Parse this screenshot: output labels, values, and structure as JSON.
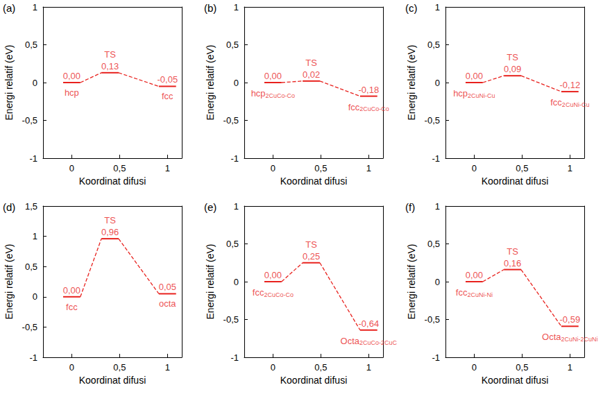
{
  "chart_data": [
    {
      "type": "line",
      "title": "(a)",
      "x_label": "Koordinat difusi",
      "y_label": "Energi relatif (eV)",
      "x": [
        0,
        0.4,
        1
      ],
      "values": [
        0,
        0.13,
        -0.05
      ],
      "value_labels": [
        "0,00",
        "0,13",
        "-0,05"
      ],
      "annotations": [
        {
          "text": "hcp"
        },
        {
          "text": "TS"
        },
        {
          "text": "fcc"
        }
      ],
      "color": "#e8211d",
      "line_style": "dashed",
      "data_labels": true,
      "grid": false,
      "xlim": [
        -0.3,
        1.15
      ],
      "xticks": [
        0,
        {
          "value": 0.5,
          "label": "0,5"
        },
        1
      ],
      "ylim": [
        -1,
        1
      ],
      "yticks": [
        -1,
        {
          "value": -0.5,
          "label": "-0,5"
        },
        0,
        {
          "value": 0.5,
          "label": "0,5"
        },
        1
      ]
    },
    {
      "type": "line",
      "title": "(b)",
      "x_label": "Koordinat difusi",
      "y_label": "Energi relatif (eV)",
      "x": [
        0,
        0.4,
        1
      ],
      "values": [
        0,
        0.02,
        -0.18
      ],
      "value_labels": [
        "0,00",
        "0,02",
        "-0,18"
      ],
      "annotations": [
        {
          "text": "hcp",
          "sub": "2CuCo-Co"
        },
        {
          "text": "TS"
        },
        {
          "text": "fcc",
          "sub": "2CuCo-Co"
        }
      ],
      "color": "#e8211d",
      "line_style": "dashed",
      "data_labels": true,
      "grid": false,
      "xlim": [
        -0.3,
        1.15
      ],
      "xticks": [
        0,
        {
          "value": 0.5,
          "label": "0,5"
        },
        1
      ],
      "ylim": [
        -1,
        1
      ],
      "yticks": [
        -1,
        {
          "value": -0.5,
          "label": "-0,5"
        },
        0,
        {
          "value": 0.5,
          "label": "0,5"
        },
        1
      ]
    },
    {
      "type": "line",
      "title": "(c)",
      "x_label": "Koordinat difusi",
      "y_label": "Energi relatif (eV)",
      "x": [
        0,
        0.4,
        1
      ],
      "values": [
        0,
        0.09,
        -0.12
      ],
      "value_labels": [
        "0,00",
        "0,09",
        "-0,12"
      ],
      "annotations": [
        {
          "text": "hcp",
          "sub": "2CuNi-Cu"
        },
        {
          "text": "TS"
        },
        {
          "text": "fcc",
          "sub": "2CuNi-Cu"
        }
      ],
      "color": "#e8211d",
      "line_style": "dashed",
      "data_labels": true,
      "grid": false,
      "xlim": [
        -0.3,
        1.15
      ],
      "xticks": [
        0,
        {
          "value": 0.5,
          "label": "0,5"
        },
        1
      ],
      "ylim": [
        -1,
        1
      ],
      "yticks": [
        -1,
        {
          "value": -0.5,
          "label": "-0,5"
        },
        0,
        {
          "value": 0.5,
          "label": "0,5"
        },
        1
      ]
    },
    {
      "type": "line",
      "title": "(d)",
      "x_label": "Koordinat difusi",
      "y_label": "Energi relatif (eV)",
      "x": [
        0,
        0.4,
        1
      ],
      "values": [
        0,
        0.96,
        0.05
      ],
      "value_labels": [
        "0,00",
        "0,96",
        "0,05"
      ],
      "annotations": [
        {
          "text": "fcc"
        },
        {
          "text": "TS"
        },
        {
          "text": "octa"
        }
      ],
      "color": "#e8211d",
      "line_style": "dashed",
      "data_labels": true,
      "grid": false,
      "xlim": [
        -0.3,
        1.15
      ],
      "xticks": [
        0,
        {
          "value": 0.5,
          "label": "0,5"
        },
        1
      ],
      "ylim": [
        -1,
        1.5
      ],
      "yticks": [
        -1,
        {
          "value": -0.5,
          "label": "-0,5"
        },
        0,
        {
          "value": 0.5,
          "label": "0,5"
        },
        1,
        {
          "value": 1.5,
          "label": "1,5"
        }
      ]
    },
    {
      "type": "line",
      "title": "(e)",
      "x_label": "Koordinat difusi",
      "y_label": "Energi relatif (eV)",
      "x": [
        0,
        0.4,
        1
      ],
      "values": [
        0,
        0.25,
        -0.64
      ],
      "value_labels": [
        "0,00",
        "0,25",
        "-0,64"
      ],
      "annotations": [
        {
          "text": "fcc",
          "sub": "2CuCo-Co"
        },
        {
          "text": "TS"
        },
        {
          "text": "Octa",
          "sub": "2CuCo-2CuC"
        }
      ],
      "color": "#e8211d",
      "line_style": "dashed",
      "data_labels": true,
      "grid": false,
      "xlim": [
        -0.3,
        1.15
      ],
      "xticks": [
        0,
        {
          "value": 0.5,
          "label": "0,5"
        },
        1
      ],
      "ylim": [
        -1,
        1
      ],
      "yticks": [
        -1,
        {
          "value": -0.5,
          "label": "-0,5"
        },
        0,
        {
          "value": 0.5,
          "label": "0,5"
        },
        1
      ]
    },
    {
      "type": "line",
      "title": "(f)",
      "x_label": "Koordinat difusi",
      "y_label": "Energi relatif (eV)",
      "x": [
        0,
        0.4,
        1
      ],
      "values": [
        0,
        0.16,
        -0.59
      ],
      "value_labels": [
        "0,00",
        "0,16",
        "-0,59"
      ],
      "annotations": [
        {
          "text": "fcc",
          "sub": "2CuNi-Ni"
        },
        {
          "text": "TS"
        },
        {
          "text": "Octa",
          "sub": "2CuNi-2CuNi"
        }
      ],
      "color": "#e8211d",
      "line_style": "dashed",
      "data_labels": true,
      "grid": false,
      "xlim": [
        -0.3,
        1.15
      ],
      "xticks": [
        0,
        {
          "value": 0.5,
          "label": "0,5"
        },
        1
      ],
      "ylim": [
        -1,
        1
      ],
      "yticks": [
        -1,
        {
          "value": -0.5,
          "label": "-0,5"
        },
        0,
        {
          "value": 0.5,
          "label": "0,5"
        },
        1
      ]
    }
  ]
}
